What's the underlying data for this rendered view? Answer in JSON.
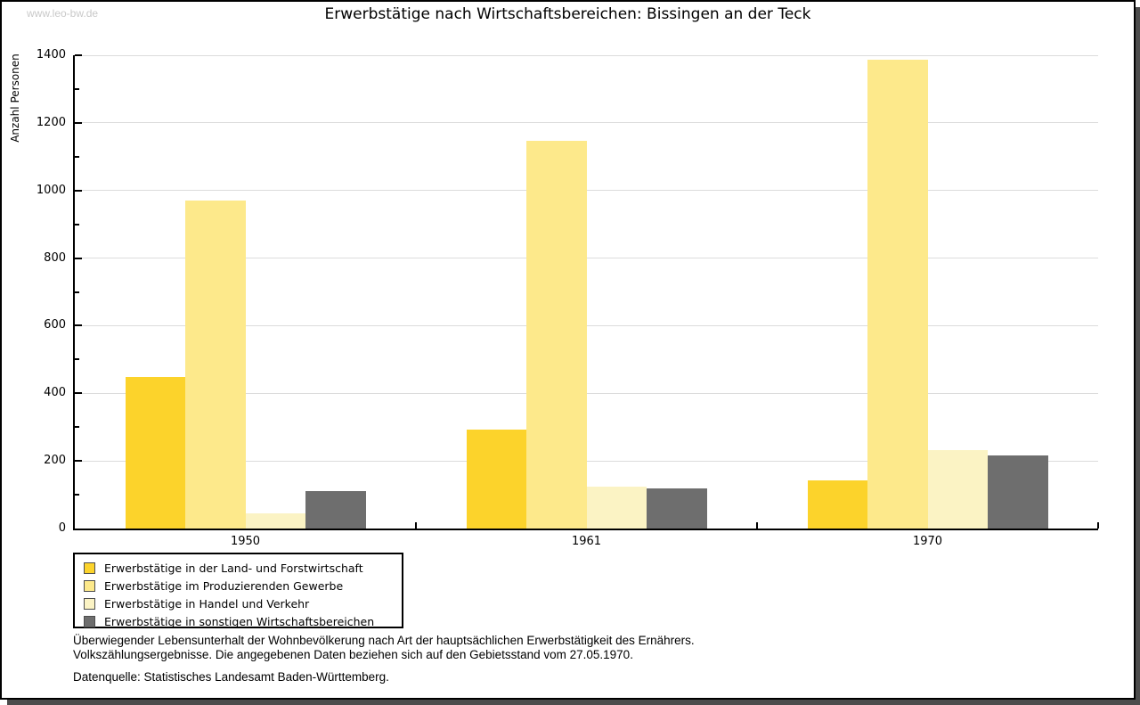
{
  "page": {
    "watermark": "www.leo-bw.de"
  },
  "chart_data": {
    "type": "bar",
    "title": "Erwerbstätige nach Wirtschaftsbereichen: Bissingen an der Teck",
    "xlabel": "",
    "ylabel": "Anzahl Personen",
    "categories": [
      "1950",
      "1961",
      "1970"
    ],
    "series": [
      {
        "name": "Erwerbstätige in der Land- und Forstwirtschaft",
        "color": "#fcd32b",
        "values": [
          447,
          293,
          142
        ]
      },
      {
        "name": "Erwerbstätige im Produzierenden Gewerbe",
        "color": "#fde98b",
        "values": [
          970,
          1146,
          1388
        ]
      },
      {
        "name": "Erwerbstätige in Handel und Verkehr",
        "color": "#fbf3c4",
        "values": [
          45,
          124,
          233
        ]
      },
      {
        "name": "Erwerbstätige in sonstigen Wirtschaftsbereichen",
        "color": "#6e6e6e",
        "values": [
          110,
          119,
          216
        ]
      }
    ],
    "ylim": [
      0,
      1400
    ],
    "ytick_step": 200,
    "yminor_step": 100,
    "grid": "horizontal",
    "legend_position": "bottom-left"
  },
  "footer": {
    "line1": "Überwiegender Lebensunterhalt der Wohnbevölkerung nach Art der hauptsächlichen Erwerbstätigkeit des Ernährers.",
    "line2": "Volkszählungsergebnisse. Die angegebenen Daten beziehen sich auf den Gebietsstand vom 27.05.1970.",
    "source": "Datenquelle: Statistisches Landesamt Baden-Württemberg."
  }
}
